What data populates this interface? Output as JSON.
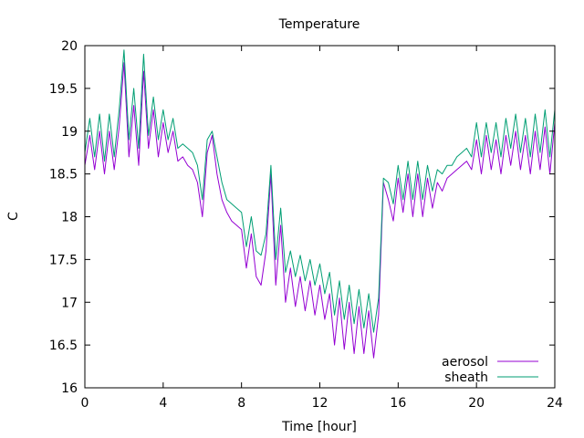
{
  "chart_data": {
    "type": "line",
    "title": "Temperature",
    "xlabel": "Time [hour]",
    "ylabel": "C",
    "xlim": [
      0,
      24
    ],
    "ylim": [
      16,
      20
    ],
    "xticks": [
      0,
      4,
      8,
      12,
      16,
      20,
      24
    ],
    "yticks": [
      16,
      16.5,
      17,
      17.5,
      18,
      18.5,
      19,
      19.5,
      20
    ],
    "grid": false,
    "legend_position": "bottom-right",
    "series": [
      {
        "name": "aerosol",
        "color": "#9400d3",
        "x": [
          0,
          0.25,
          0.5,
          0.75,
          1,
          1.25,
          1.5,
          1.75,
          2,
          2.25,
          2.5,
          2.75,
          3,
          3.25,
          3.5,
          3.75,
          4,
          4.25,
          4.5,
          4.75,
          5,
          5.25,
          5.5,
          5.75,
          6,
          6.25,
          6.5,
          6.75,
          7,
          7.25,
          7.5,
          7.75,
          8,
          8.25,
          8.5,
          8.75,
          9,
          9.25,
          9.5,
          9.75,
          10,
          10.25,
          10.5,
          10.75,
          11,
          11.25,
          11.5,
          11.75,
          12,
          12.25,
          12.5,
          12.75,
          13,
          13.25,
          13.5,
          13.75,
          14,
          14.25,
          14.5,
          14.75,
          15,
          15.25,
          15.5,
          15.75,
          16,
          16.25,
          16.5,
          16.75,
          17,
          17.25,
          17.5,
          17.75,
          18,
          18.25,
          18.5,
          18.75,
          19,
          19.25,
          19.5,
          19.75,
          20,
          20.25,
          20.5,
          20.75,
          21,
          21.25,
          21.5,
          21.75,
          22,
          22.25,
          22.5,
          22.75,
          23,
          23.25,
          23.5,
          23.75,
          24
        ],
        "y": [
          18.6,
          18.95,
          18.55,
          19.0,
          18.5,
          19.0,
          18.55,
          19.05,
          19.8,
          18.7,
          19.3,
          18.6,
          19.7,
          18.8,
          19.25,
          18.7,
          19.1,
          18.75,
          19.0,
          18.65,
          18.7,
          18.6,
          18.55,
          18.4,
          18.0,
          18.75,
          18.95,
          18.5,
          18.2,
          18.05,
          17.95,
          17.9,
          17.85,
          17.4,
          17.8,
          17.3,
          17.2,
          17.6,
          18.5,
          17.2,
          17.9,
          17.0,
          17.4,
          16.95,
          17.3,
          16.9,
          17.25,
          16.85,
          17.2,
          16.8,
          17.1,
          16.5,
          17.05,
          16.45,
          17.0,
          16.4,
          16.95,
          16.4,
          16.9,
          16.35,
          16.85,
          18.4,
          18.2,
          17.95,
          18.45,
          18.05,
          18.5,
          18.0,
          18.5,
          18.0,
          18.45,
          18.1,
          18.4,
          18.3,
          18.45,
          18.5,
          18.55,
          18.6,
          18.65,
          18.55,
          18.9,
          18.5,
          18.95,
          18.55,
          18.9,
          18.5,
          18.95,
          18.6,
          19.0,
          18.55,
          18.95,
          18.5,
          19.0,
          18.55,
          19.05,
          18.5,
          19.1
        ]
      },
      {
        "name": "sheath",
        "color": "#009e73",
        "x": [
          0,
          0.25,
          0.5,
          0.75,
          1,
          1.25,
          1.5,
          1.75,
          2,
          2.25,
          2.5,
          2.75,
          3,
          3.25,
          3.5,
          3.75,
          4,
          4.25,
          4.5,
          4.75,
          5,
          5.25,
          5.5,
          5.75,
          6,
          6.25,
          6.5,
          6.75,
          7,
          7.25,
          7.5,
          7.75,
          8,
          8.25,
          8.5,
          8.75,
          9,
          9.25,
          9.5,
          9.75,
          10,
          10.25,
          10.5,
          10.75,
          11,
          11.25,
          11.5,
          11.75,
          12,
          12.25,
          12.5,
          12.75,
          13,
          13.25,
          13.5,
          13.75,
          14,
          14.25,
          14.5,
          14.75,
          15,
          15.25,
          15.5,
          15.75,
          16,
          16.25,
          16.5,
          16.75,
          17,
          17.25,
          17.5,
          17.75,
          18,
          18.25,
          18.5,
          18.75,
          19,
          19.25,
          19.5,
          19.75,
          20,
          20.25,
          20.5,
          20.75,
          21,
          21.25,
          21.5,
          21.75,
          22,
          22.25,
          22.5,
          22.75,
          23,
          23.25,
          23.5,
          23.75,
          24
        ],
        "y": [
          18.75,
          19.15,
          18.7,
          19.2,
          18.65,
          19.2,
          18.7,
          19.25,
          19.95,
          18.9,
          19.5,
          18.8,
          19.9,
          18.95,
          19.4,
          18.9,
          19.25,
          18.9,
          19.15,
          18.8,
          18.85,
          18.8,
          18.75,
          18.6,
          18.2,
          18.9,
          19.0,
          18.7,
          18.4,
          18.2,
          18.15,
          18.1,
          18.05,
          17.65,
          18.0,
          17.6,
          17.55,
          17.8,
          18.6,
          17.5,
          18.1,
          17.35,
          17.6,
          17.3,
          17.55,
          17.25,
          17.5,
          17.2,
          17.45,
          17.1,
          17.35,
          16.85,
          17.25,
          16.8,
          17.2,
          16.75,
          17.15,
          16.7,
          17.1,
          16.65,
          17.05,
          18.45,
          18.4,
          18.15,
          18.6,
          18.2,
          18.65,
          18.2,
          18.65,
          18.2,
          18.6,
          18.3,
          18.55,
          18.5,
          18.6,
          18.6,
          18.7,
          18.75,
          18.8,
          18.7,
          19.1,
          18.7,
          19.1,
          18.75,
          19.1,
          18.7,
          19.15,
          18.8,
          19.2,
          18.75,
          19.15,
          18.7,
          19.2,
          18.75,
          19.25,
          18.7,
          19.25
        ]
      }
    ]
  }
}
